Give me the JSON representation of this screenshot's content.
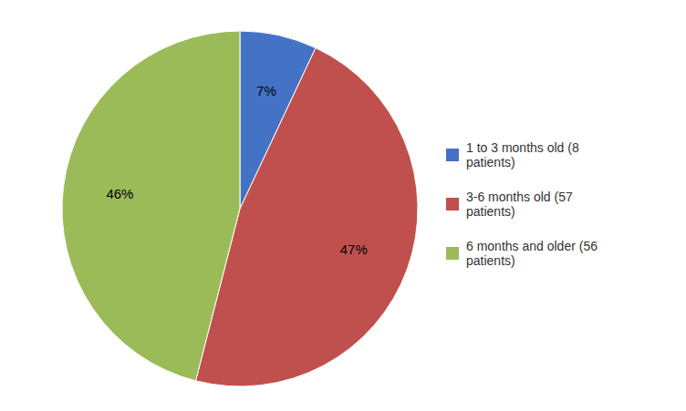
{
  "chart_data": {
    "type": "pie",
    "categories": [
      "1 to 3 months old (8\n patients)",
      "3-6 months old (57\n patients)",
      "6 months and older (56\n patients)"
    ],
    "values": [
      7,
      47,
      46
    ],
    "value_labels": [
      "7%",
      "47%",
      "46%"
    ],
    "colors": [
      "#4472C4",
      "#C0504D",
      "#9BBB59"
    ],
    "data_labels": true,
    "legend": "right"
  }
}
